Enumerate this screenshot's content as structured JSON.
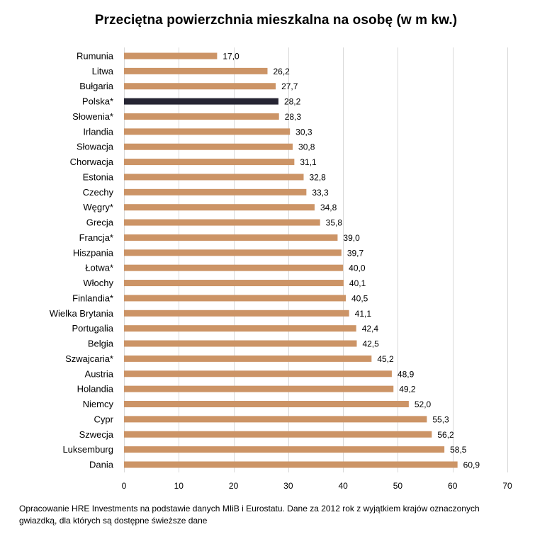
{
  "chart_data": {
    "type": "bar",
    "orientation": "horizontal",
    "title": "Przeciętna powierzchnia mieszkalna na osobę (w m kw.)",
    "categories": [
      "Rumunia",
      "Litwa",
      "Bułgaria",
      "Polska*",
      "Słowenia*",
      "Irlandia",
      "Słowacja",
      "Chorwacja",
      "Estonia",
      "Czechy",
      "Węgry*",
      "Grecja",
      "Francja*",
      "Hiszpania",
      "Łotwa*",
      "Włochy",
      "Finlandia*",
      "Wielka Brytania",
      "Portugalia",
      "Belgia",
      "Szwajcaria*",
      "Austria",
      "Holandia",
      "Niemcy",
      "Cypr",
      "Szwecja",
      "Luksemburg",
      "Dania"
    ],
    "values": [
      17.0,
      26.2,
      27.7,
      28.2,
      28.3,
      30.3,
      30.8,
      31.1,
      32.8,
      33.3,
      34.8,
      35.8,
      39.0,
      39.7,
      40.0,
      40.1,
      40.5,
      41.1,
      42.4,
      42.5,
      45.2,
      48.9,
      49.2,
      52.0,
      55.3,
      56.2,
      58.5,
      60.9
    ],
    "value_labels": [
      "17,0",
      "26,2",
      "27,7",
      "28,2",
      "28,3",
      "30,3",
      "30,8",
      "31,1",
      "32,8",
      "33,3",
      "34,8",
      "35,8",
      "39,0",
      "39,7",
      "40,0",
      "40,1",
      "40,5",
      "41,1",
      "42,4",
      "42,5",
      "45,2",
      "48,9",
      "49,2",
      "52,0",
      "55,3",
      "56,2",
      "58,5",
      "60,9"
    ],
    "highlight": "Polska*",
    "xlim": [
      0,
      70
    ],
    "xticks": [
      0,
      10,
      20,
      30,
      40,
      50,
      60,
      70
    ],
    "xlabel": "",
    "ylabel": "",
    "grid": true,
    "legend": "none",
    "colors": {
      "bar": "#CC9466",
      "highlight": "#262533",
      "grid": "#D9D9D9"
    }
  },
  "footnote": "Opracowanie HRE Investments na podstawie danych MIiB i Eurostatu. Dane za 2012 rok z wyjątkiem krajów oznaczonych gwiazdką, dla których są dostępne świeższe dane"
}
